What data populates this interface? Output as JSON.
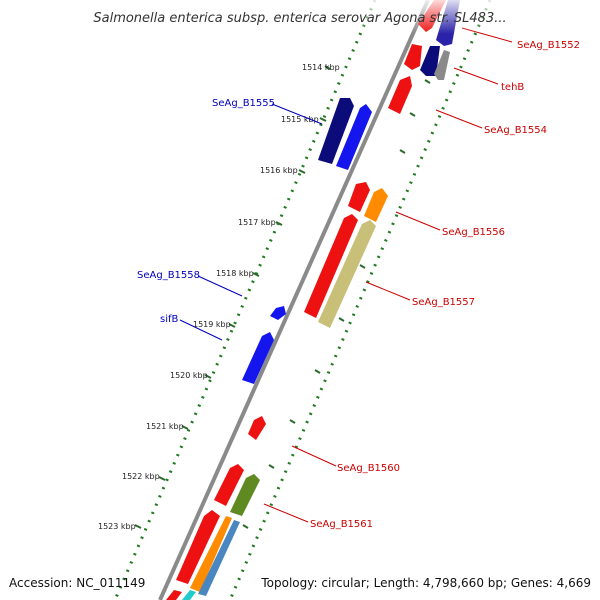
{
  "title": "Salmonella enterica subsp. enterica serovar Agona str. SL483...",
  "footer": {
    "accession": "Accession: NC_011149",
    "topology": "Topology: circular; Length: 4,798,660 bp; Genes: 4,669"
  },
  "ticks": [
    "1514 kbp",
    "1515 kbp",
    "1516 kbp",
    "1517 kbp",
    "1518 kbp",
    "1519 kbp",
    "1520 kbp",
    "1521 kbp",
    "1522 kbp",
    "1523 kbp"
  ],
  "gene_labels": {
    "seag_b1552": "SeAg_B1552",
    "tehb": "tehB",
    "seag_b1554": "SeAg_B1554",
    "seag_b1555": "SeAg_B1555",
    "seag_b1556": "SeAg_B1556",
    "seag_b1557": "SeAg_B1557",
    "seag_b1558": "SeAg_B1558",
    "sifb": "sifB",
    "seag_b1560": "SeAg_B1560",
    "seag_b1561": "SeAg_B1561"
  },
  "colors": {
    "backbone": "#8a8a8a",
    "dots": "#1e7a1e",
    "red": "#ee1111",
    "blue": "#1515ee",
    "navy": "#0b0b7a",
    "orange": "#ff8c00",
    "khaki": "#c8c078",
    "olive": "#5f8a22",
    "steelblue": "#4a86c0",
    "label_red": "#cc0000",
    "label_blue": "#0000bb"
  }
}
